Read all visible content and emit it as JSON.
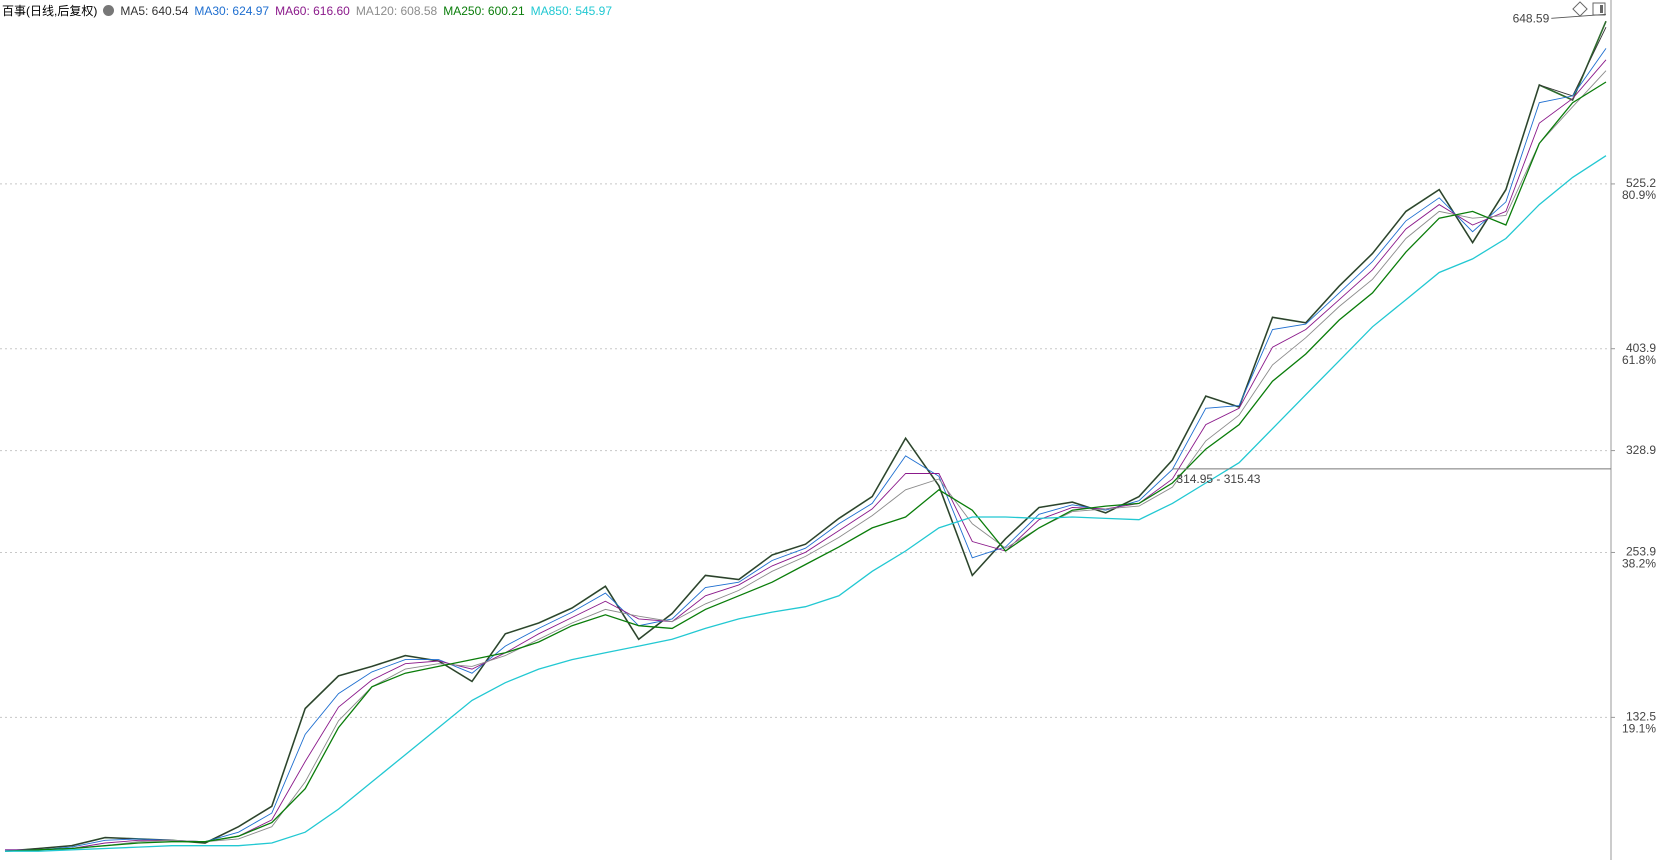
{
  "chart_data": {
    "type": "line",
    "title": "百事(日线,后复权)",
    "close": [
      34,
      36,
      38,
      44,
      43,
      42,
      40,
      52,
      67,
      139,
      163,
      170,
      178,
      174,
      159,
      194,
      202,
      213,
      229,
      190,
      209,
      237,
      234,
      252,
      260,
      279,
      295,
      338,
      303,
      237,
      264,
      287,
      291,
      283,
      295,
      322,
      369,
      361,
      427,
      423,
      450,
      474,
      505,
      521,
      482,
      521,
      598,
      587,
      645
    ],
    "close_color": "#2e6b2e",
    "series": [
      {
        "name": "MA5: 640.54",
        "color": "#333333",
        "values": [
          34,
          36,
          38,
          44,
          43,
          42,
          40,
          52,
          67,
          139,
          163,
          170,
          178,
          174,
          159,
          194,
          202,
          213,
          229,
          190,
          209,
          237,
          234,
          252,
          260,
          279,
          295,
          338,
          303,
          237,
          264,
          287,
          291,
          283,
          295,
          322,
          369,
          361,
          427,
          423,
          450,
          474,
          505,
          521,
          482,
          521,
          598,
          590,
          640.54
        ]
      },
      {
        "name": "MA30: 624.97",
        "color": "#1f6fd0",
        "values": [
          35,
          35,
          37,
          42,
          43,
          42,
          41,
          48,
          62,
          120,
          150,
          166,
          175,
          175,
          165,
          185,
          198,
          210,
          224,
          200,
          205,
          228,
          232,
          248,
          257,
          275,
          290,
          325,
          310,
          250,
          258,
          282,
          289,
          285,
          292,
          315,
          360,
          362,
          418,
          422,
          445,
          468,
          498,
          515,
          490,
          512,
          585,
          590,
          624.97
        ]
      },
      {
        "name": "MA60: 616.60",
        "color": "#8b1a8b",
        "values": [
          35,
          35,
          36,
          40,
          42,
          42,
          41,
          45,
          57,
          100,
          140,
          160,
          172,
          174,
          168,
          180,
          194,
          206,
          218,
          205,
          203,
          222,
          230,
          244,
          254,
          270,
          286,
          312,
          312,
          262,
          255,
          278,
          287,
          286,
          290,
          308,
          348,
          360,
          405,
          418,
          440,
          462,
          492,
          510,
          495,
          505,
          570,
          588,
          616.6
        ]
      },
      {
        "name": "MA120: 608.58",
        "color": "#8c8c8c",
        "values": [
          34,
          35,
          36,
          38,
          41,
          42,
          41,
          43,
          52,
          85,
          130,
          155,
          168,
          172,
          170,
          178,
          190,
          202,
          212,
          207,
          203,
          216,
          226,
          240,
          251,
          265,
          281,
          300,
          308,
          275,
          257,
          272,
          284,
          286,
          288,
          302,
          336,
          355,
          392,
          412,
          435,
          455,
          485,
          505,
          500,
          502,
          555,
          582,
          608.58
        ]
      },
      {
        "name": "MA250: 600.21",
        "color": "#0a7d0a",
        "values": [
          34,
          35,
          36,
          38,
          40,
          41,
          41,
          45,
          55,
          80,
          125,
          155,
          165,
          170,
          175,
          180,
          188,
          200,
          208,
          200,
          198,
          212,
          222,
          232,
          245,
          258,
          272,
          280,
          300,
          285,
          255,
          272,
          285,
          288,
          290,
          305,
          330,
          348,
          380,
          400,
          425,
          445,
          475,
          500,
          505,
          495,
          555,
          585,
          600.21
        ]
      },
      {
        "name": "MA850: 545.97",
        "color": "#22c8d2",
        "values": [
          34,
          34,
          35,
          36,
          37,
          38,
          38,
          38,
          40,
          48,
          65,
          85,
          105,
          125,
          145,
          158,
          168,
          175,
          180,
          185,
          190,
          198,
          205,
          210,
          214,
          222,
          240,
          255,
          272,
          280,
          280,
          279,
          280,
          279,
          278,
          290,
          305,
          320,
          345,
          370,
          395,
          420,
          440,
          460,
          470,
          485,
          510,
          530,
          545.97
        ]
      }
    ],
    "ylim": [
      27.5,
      660.6
    ],
    "yticks": [
      525.2,
      403.9,
      328.9,
      253.9,
      132.5
    ],
    "ytick_ratios": [
      "80.9%",
      "61.8%",
      null,
      "38.2%",
      "19.1%"
    ],
    "grid": true,
    "max_marker": {
      "value": 648.59,
      "label": "648.59"
    },
    "range_line": {
      "value": 315.43,
      "label": "314.95 - 315.43"
    }
  }
}
